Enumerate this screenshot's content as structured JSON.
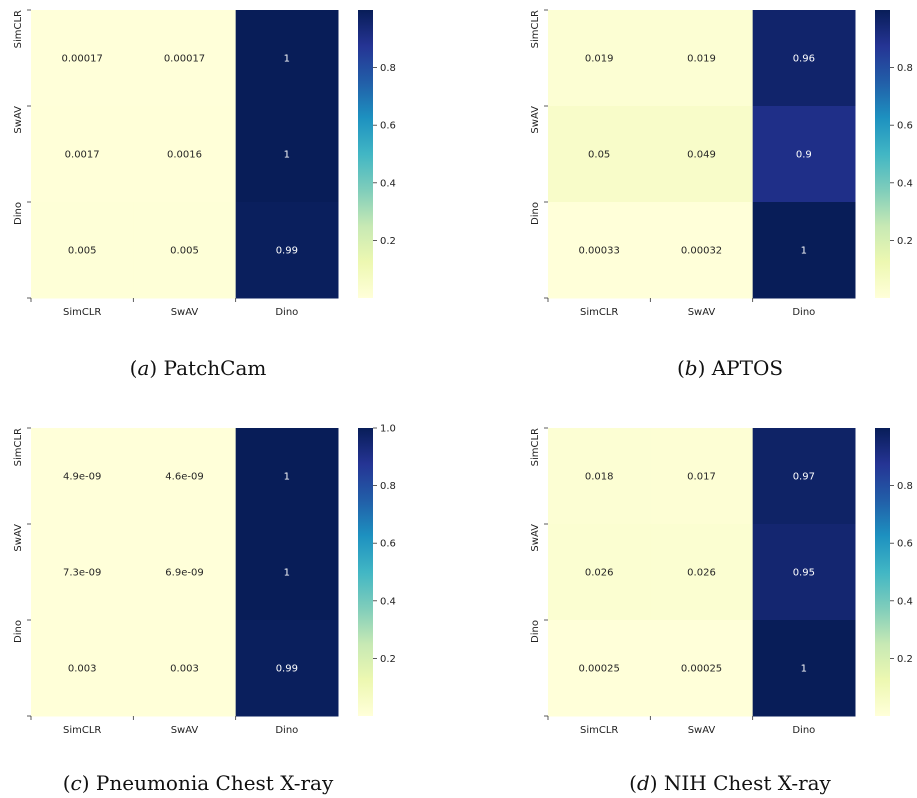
{
  "chart_data": [
    {
      "type": "heatmap",
      "caption_letter": "a",
      "caption_label": "PatchCam",
      "rows": [
        "SimCLR",
        "SwAV",
        "Dino"
      ],
      "columns": [
        "SimCLR",
        "SwAV",
        "Dino"
      ],
      "values": [
        [
          0.00017,
          0.00017,
          1
        ],
        [
          0.0017,
          0.0016,
          1
        ],
        [
          0.005,
          0.005,
          0.99
        ]
      ],
      "labels": [
        [
          "0.00017",
          "0.00017",
          "1"
        ],
        [
          "0.0017",
          "0.0016",
          "1"
        ],
        [
          "0.005",
          "0.005",
          "0.99"
        ]
      ],
      "colorbar": {
        "range": [
          0,
          1
        ],
        "ticks": [
          "0.2",
          "0.4",
          "0.6",
          "0.8"
        ]
      },
      "colormap": "YlGnBu"
    },
    {
      "type": "heatmap",
      "caption_letter": "b",
      "caption_label": "APTOS",
      "rows": [
        "SimCLR",
        "SwAV",
        "Dino"
      ],
      "columns": [
        "SimCLR",
        "SwAV",
        "Dino"
      ],
      "values": [
        [
          0.019,
          0.019,
          0.96
        ],
        [
          0.05,
          0.049,
          0.9
        ],
        [
          0.00033,
          0.00032,
          1
        ]
      ],
      "labels": [
        [
          "0.019",
          "0.019",
          "0.96"
        ],
        [
          "0.05",
          "0.049",
          "0.9"
        ],
        [
          "0.00033",
          "0.00032",
          "1"
        ]
      ],
      "colorbar": {
        "range": [
          0,
          1
        ],
        "ticks": [
          "0.2",
          "0.4",
          "0.6",
          "0.8"
        ]
      },
      "colormap": "YlGnBu"
    },
    {
      "type": "heatmap",
      "caption_letter": "c",
      "caption_label": "Pneumonia Chest X-ray",
      "rows": [
        "SimCLR",
        "SwAV",
        "Dino"
      ],
      "columns": [
        "SimCLR",
        "SwAV",
        "Dino"
      ],
      "values": [
        [
          4.9e-09,
          4.6e-09,
          1
        ],
        [
          7.3e-09,
          6.9e-09,
          1
        ],
        [
          0.003,
          0.003,
          0.99
        ]
      ],
      "labels": [
        [
          "4.9e-09",
          "4.6e-09",
          "1"
        ],
        [
          "7.3e-09",
          "6.9e-09",
          "1"
        ],
        [
          "0.003",
          "0.003",
          "0.99"
        ]
      ],
      "colorbar": {
        "range": [
          0,
          1
        ],
        "ticks": [
          "0.2",
          "0.4",
          "0.6",
          "0.8",
          "1.0"
        ]
      },
      "colormap": "YlGnBu"
    },
    {
      "type": "heatmap",
      "caption_letter": "d",
      "caption_label": "NIH Chest X-ray",
      "rows": [
        "SimCLR",
        "SwAV",
        "Dino"
      ],
      "columns": [
        "SimCLR",
        "SwAV",
        "Dino"
      ],
      "values": [
        [
          0.018,
          0.017,
          0.97
        ],
        [
          0.026,
          0.026,
          0.95
        ],
        [
          0.00025,
          0.00025,
          1
        ]
      ],
      "labels": [
        [
          "0.018",
          "0.017",
          "0.97"
        ],
        [
          "0.026",
          "0.026",
          "0.95"
        ],
        [
          "0.00025",
          "0.00025",
          "1"
        ]
      ],
      "colorbar": {
        "range": [
          0,
          1
        ],
        "ticks": [
          "0.2",
          "0.4",
          "0.6",
          "0.8"
        ]
      },
      "colormap": "YlGnBu"
    }
  ]
}
